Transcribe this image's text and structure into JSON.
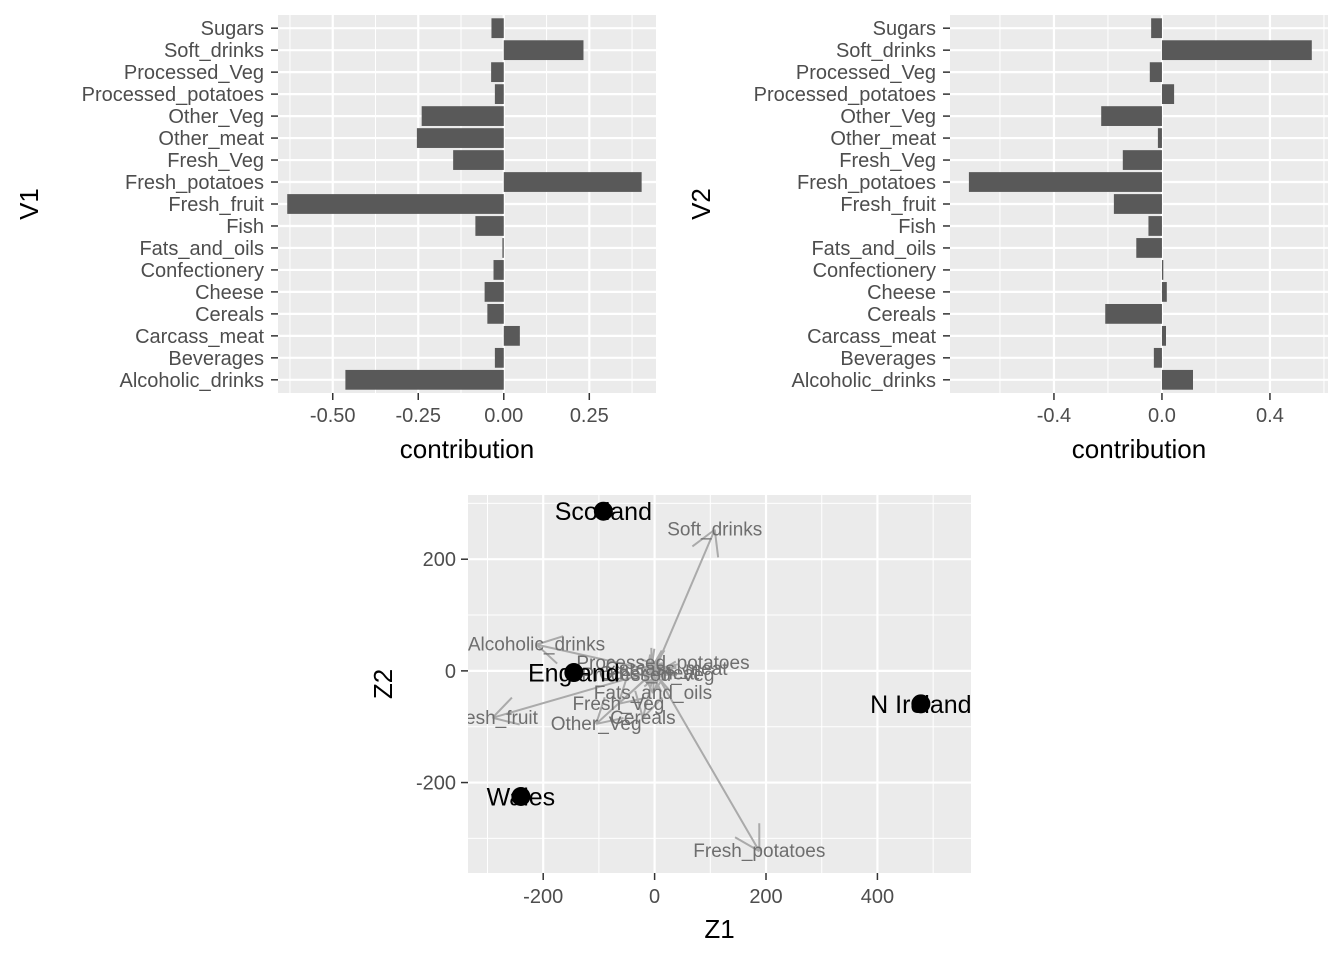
{
  "chart_data": [
    {
      "type": "bar",
      "orientation": "horizontal",
      "ylabel": "V1",
      "xlabel": "contribution",
      "xlim": [
        -0.66,
        0.445
      ],
      "xticks": [
        -0.5,
        -0.25,
        0.0,
        0.25
      ],
      "xtick_labels": [
        "-0.50",
        "-0.25",
        "0.00",
        "0.25"
      ],
      "grid": true,
      "bar_color": "#595959",
      "panel_bg": "#ebebeb",
      "categories": [
        "Sugars",
        "Soft_drinks",
        "Processed_Veg",
        "Processed_potatoes",
        "Other_Veg",
        "Other_meat",
        "Fresh_Veg",
        "Fresh_potatoes",
        "Fresh_fruit",
        "Fish",
        "Fats_and_oils",
        "Confectionery",
        "Cheese",
        "Cereals",
        "Carcass_meat",
        "Beverages",
        "Alcoholic_drinks"
      ],
      "values": [
        -0.036,
        0.233,
        -0.037,
        -0.026,
        -0.24,
        -0.254,
        -0.148,
        0.403,
        -0.633,
        -0.083,
        -0.004,
        -0.03,
        -0.056,
        -0.048,
        0.047,
        -0.026,
        -0.463
      ]
    },
    {
      "type": "bar",
      "orientation": "horizontal",
      "ylabel": "V2",
      "xlabel": "contribution",
      "xlim": [
        -0.785,
        0.615
      ],
      "xticks": [
        -0.4,
        0.0,
        0.4
      ],
      "xtick_labels": [
        "-0.4",
        "0.0",
        "0.4"
      ],
      "grid": true,
      "bar_color": "#595959",
      "panel_bg": "#ebebeb",
      "categories": [
        "Sugars",
        "Soft_drinks",
        "Processed_Veg",
        "Processed_potatoes",
        "Other_Veg",
        "Other_meat",
        "Fresh_Veg",
        "Fresh_potatoes",
        "Fresh_fruit",
        "Fish",
        "Fats_and_oils",
        "Confectionery",
        "Cheese",
        "Cereals",
        "Carcass_meat",
        "Beverages",
        "Alcoholic_drinks"
      ],
      "values": [
        -0.04,
        0.555,
        -0.045,
        0.045,
        -0.225,
        -0.015,
        -0.145,
        -0.715,
        -0.178,
        -0.05,
        -0.095,
        0.005,
        0.018,
        -0.21,
        0.015,
        -0.03,
        0.115
      ]
    },
    {
      "type": "scatter",
      "subtype": "biplot",
      "xlabel": "Z1",
      "ylabel": "Z2",
      "xlim": [
        -335,
        568
      ],
      "ylim": [
        -362,
        315
      ],
      "xticks": [
        -200,
        0,
        200,
        400
      ],
      "yticks": [
        -200,
        0,
        200
      ],
      "grid": true,
      "panel_bg": "#ebebeb",
      "points": [
        {
          "label": "Scotland",
          "x": -92,
          "y": 286
        },
        {
          "label": "England",
          "x": -145,
          "y": -3
        },
        {
          "label": "N Ireland",
          "x": 478,
          "y": -59
        },
        {
          "label": "Wales",
          "x": -240,
          "y": -225
        }
      ],
      "loadings": [
        {
          "label": "Soft_drinks",
          "x": 108,
          "y": 253
        },
        {
          "label": "Alcoholic_drinks",
          "x": -212,
          "y": 47
        },
        {
          "label": "Processed_potatoes",
          "x": 15,
          "y": 14
        },
        {
          "label": "Carcass_meat",
          "x": 21,
          "y": 3
        },
        {
          "label": "Other_meat",
          "x": -10,
          "y": -5
        },
        {
          "label": "Processed_Veg",
          "x": -12,
          "y": -7
        },
        {
          "label": "Fresh_Veg",
          "x": -65,
          "y": -59
        },
        {
          "label": "Other_Veg",
          "x": -105,
          "y": -95
        },
        {
          "label": "Fresh_fruit",
          "x": -291,
          "y": -84
        },
        {
          "label": "Fats_and_oils",
          "x": -3,
          "y": -40
        },
        {
          "label": "Cereals",
          "x": -21,
          "y": -84
        },
        {
          "label": "Fresh_potatoes",
          "x": 188,
          "y": -323
        },
        {
          "label": "Cheese",
          "x": -11,
          "y": 7
        },
        {
          "label": "Sugars",
          "x": -8,
          "y": -10
        },
        {
          "label": "Fish",
          "x": -17,
          "y": -20
        },
        {
          "label": "Confectionery",
          "x": -6,
          "y": 2
        },
        {
          "label": "Beverages",
          "x": -5,
          "y": -9
        }
      ],
      "arrow_color": "#aaaaaa",
      "label_color": "#6e6e6e",
      "shown_labels": [
        "Soft_drinks",
        "Alcoholic_drinks",
        "Processed_potatoes",
        "Carcass_meat",
        "Other_meat",
        "Processed_Veg",
        "Fresh_Veg",
        "Other_Veg",
        "Fresh_fruit",
        "Fats_and_oils",
        "Cereals",
        "Fresh_potatoes"
      ]
    }
  ]
}
